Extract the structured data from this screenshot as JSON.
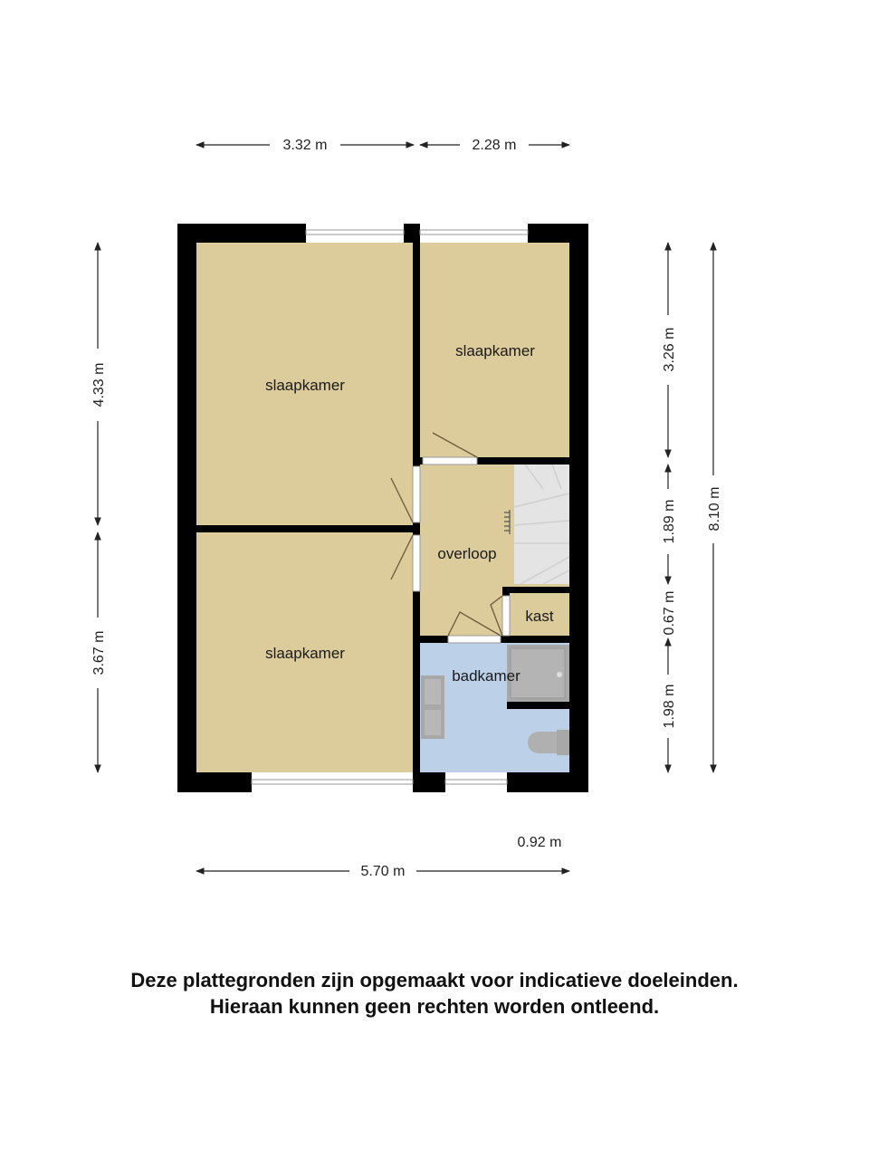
{
  "colors": {
    "floor": "#dccb9b",
    "bathroom": "#bcd0e8",
    "wall": "#000000",
    "stairs": "#e4e4e4",
    "fixture": "#a8a8a8"
  },
  "rooms": {
    "bedroom_top_left": "slaapkamer",
    "bedroom_top_right": "slaapkamer",
    "bedroom_bottom_left": "slaapkamer",
    "landing": "overloop",
    "closet": "kast",
    "bathroom": "badkamer"
  },
  "dimensions": {
    "top_left": "3.32 m",
    "top_right": "2.28 m",
    "left_top": "4.33 m",
    "left_bottom": "3.67 m",
    "right_1": "3.26 m",
    "right_2": "1.89 m",
    "right_3": "0.67 m",
    "right_4": "1.98 m",
    "total_height": "8.10 m",
    "bottom_small": "0.92 m",
    "total_width": "5.70 m"
  },
  "disclaimer": {
    "line1": "Deze plattegronden zijn opgemaakt voor indicatieve doeleinden.",
    "line2": "Hieraan kunnen geen rechten worden ontleend."
  }
}
